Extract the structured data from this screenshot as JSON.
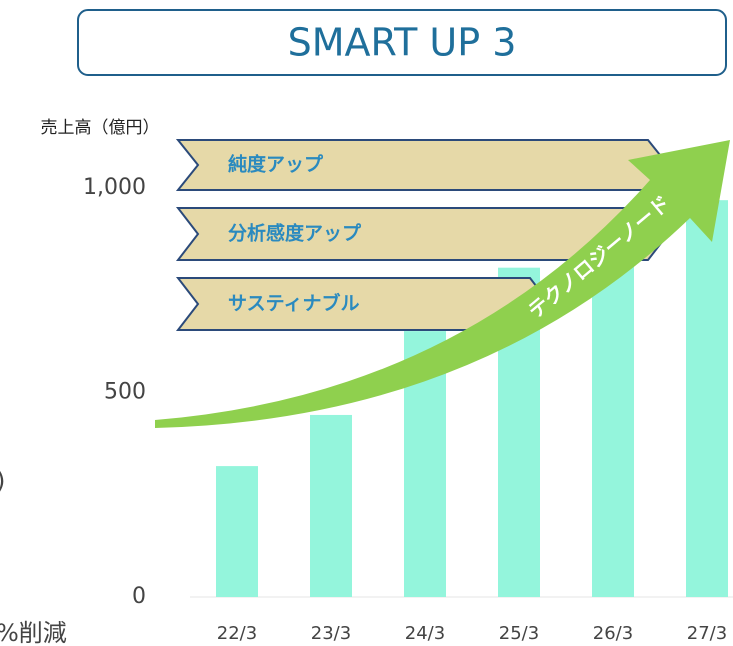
{
  "chart_data": {
    "type": "bar",
    "title": "SMART UP 3",
    "y_axis_label": "売上高（億円）",
    "categories": [
      "22/3",
      "23/3",
      "24/3",
      "25/3",
      "26/3",
      "27/3"
    ],
    "values": [
      320,
      445,
      650,
      805,
      810,
      970
    ],
    "color": "#94f5dc",
    "ylim": [
      0,
      1100
    ],
    "yticks": [
      0,
      500,
      {
        "value": 1000,
        "label": "1,000"
      }
    ],
    "banners": [
      "純度アップ",
      "分析感度アップ",
      "サスティナブル"
    ],
    "arrow_label": "テクノロジーノード",
    "cropped_texts": [
      ")",
      "%削減"
    ]
  }
}
